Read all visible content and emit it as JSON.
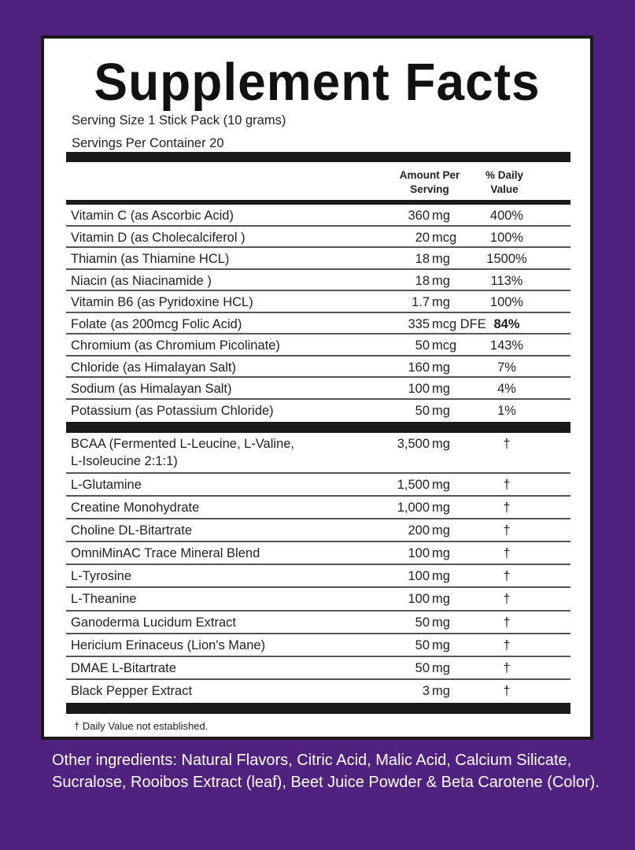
{
  "title": "Supplement Facts",
  "serving_size": "Serving Size 1 Stick Pack (10 grams)",
  "servings_per_container": "Servings Per Container 20",
  "header": {
    "amount_line1": "Amount Per",
    "amount_line2": "Serving",
    "dv_line1": "% Daily",
    "dv_line2": "Value"
  },
  "vitamins": [
    {
      "name": "Vitamin C (as Ascorbic Acid)",
      "amount": "360",
      "unit": "mg",
      "dv": "400%"
    },
    {
      "name": "Vitamin D  (as Cholecalciferol )",
      "amount": "20",
      "unit": "mcg",
      "dv": "100%"
    },
    {
      "name": "Thiamin (as Thiamine HCL)",
      "amount": "18",
      "unit": "mg",
      "dv": "1500%"
    },
    {
      "name": "Niacin  (as Niacinamide )",
      "amount": "18",
      "unit": "mg",
      "dv": "113%"
    },
    {
      "name": "Vitamin B6  (as Pyridoxine HCL)",
      "amount": "1.7",
      "unit": "mg",
      "dv": "100%"
    },
    {
      "name": "Folate (as 200mcg Folic Acid)",
      "amount": "335",
      "unit": "mcg DFE",
      "dv": "84%"
    },
    {
      "name": "Chromium (as Chromium Picolinate)",
      "amount": "50",
      "unit": "mcg",
      "dv": "143%"
    },
    {
      "name": "Chloride (as Himalayan Salt)",
      "amount": "160",
      "unit": "mg",
      "dv": "7%"
    },
    {
      "name": "Sodium  (as Himalayan Salt)",
      "amount": "100",
      "unit": "mg",
      "dv": "4%"
    },
    {
      "name": "Potassium (as Potassium Chloride)",
      "amount": "50",
      "unit": "mg",
      "dv": "1%"
    }
  ],
  "others": [
    {
      "name": "BCAA (Fermented L-Leucine, L-Valine,",
      "name2": "L-Isoleucine 2:1:1)",
      "amount": "3,500",
      "unit": "mg",
      "dv": "†"
    },
    {
      "name": "L-Glutamine",
      "amount": "1,500",
      "unit": "mg",
      "dv": "†"
    },
    {
      "name": "Creatine Monohydrate",
      "amount": "1,000",
      "unit": "mg",
      "dv": "†"
    },
    {
      "name": "Choline DL-Bitartrate",
      "amount": "200",
      "unit": "mg",
      "dv": "†"
    },
    {
      "name": "OmniMinAC Trace Mineral Blend",
      "amount": "100",
      "unit": "mg",
      "dv": "†"
    },
    {
      "name": "L-Tyrosine",
      "amount": "100",
      "unit": "mg",
      "dv": "†"
    },
    {
      "name": "L-Theanine",
      "amount": "100",
      "unit": "mg",
      "dv": "†"
    },
    {
      "name": "Ganoderma Lucidum Extract",
      "amount": "50",
      "unit": "mg",
      "dv": "†"
    },
    {
      "name": "Hericium Erinaceus (Lion's Mane)",
      "amount": "50",
      "unit": "mg",
      "dv": "†"
    },
    {
      "name": "DMAE L-Bitartrate",
      "amount": "50",
      "unit": "mg",
      "dv": "†"
    },
    {
      "name": "Black Pepper Extract",
      "amount": "3",
      "unit": "mg",
      "dv": "†"
    }
  ],
  "footnote": "† Daily Value not established.",
  "other_ingredients": "Other ingredients: Natural Flavors, Citric Acid, Malic Acid, Calcium Silicate, Sucralose, Rooibos Extract (leaf), Beet Juice Powder & Beta Carotene (Color).",
  "colors": {
    "background": "#51217f",
    "panel": "#ffffff",
    "rules": "#1a1a1a"
  }
}
